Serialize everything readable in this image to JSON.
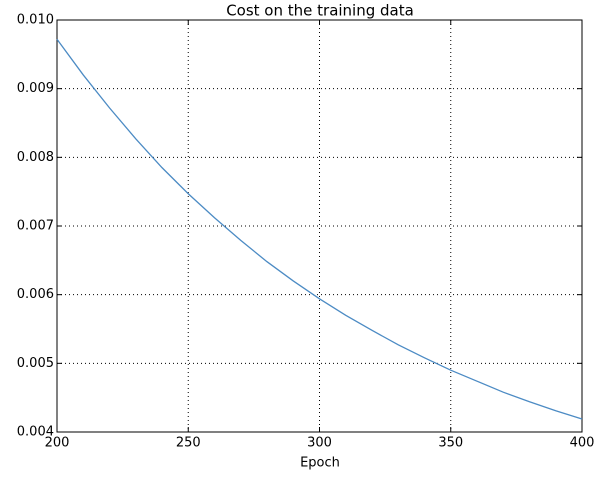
{
  "chart_data": {
    "type": "line",
    "title": "Cost on the training data",
    "x_label": "Epoch",
    "x": [
      200,
      210,
      220,
      230,
      240,
      250,
      260,
      270,
      280,
      290,
      300,
      310,
      320,
      330,
      340,
      350,
      360,
      370,
      380,
      390,
      400
    ],
    "values": [
      0.00972,
      0.0092,
      0.00872,
      0.00827,
      0.00785,
      0.00747,
      0.00712,
      0.00679,
      0.00648,
      0.0062,
      0.00594,
      0.0057,
      0.00548,
      0.00527,
      0.00508,
      0.0049,
      0.00474,
      0.00458,
      0.00444,
      0.00431,
      0.00419
    ],
    "color": "#4c8bc4",
    "xlim": [
      200,
      400
    ],
    "xticks": [
      200,
      250,
      300,
      350,
      400
    ],
    "ylim": [
      0.004,
      0.01
    ],
    "yticks": [
      0.004,
      0.005,
      0.006,
      0.007,
      0.008,
      0.009,
      {
        "value": 0.01,
        "label": "0.010"
      }
    ],
    "grid": true
  }
}
